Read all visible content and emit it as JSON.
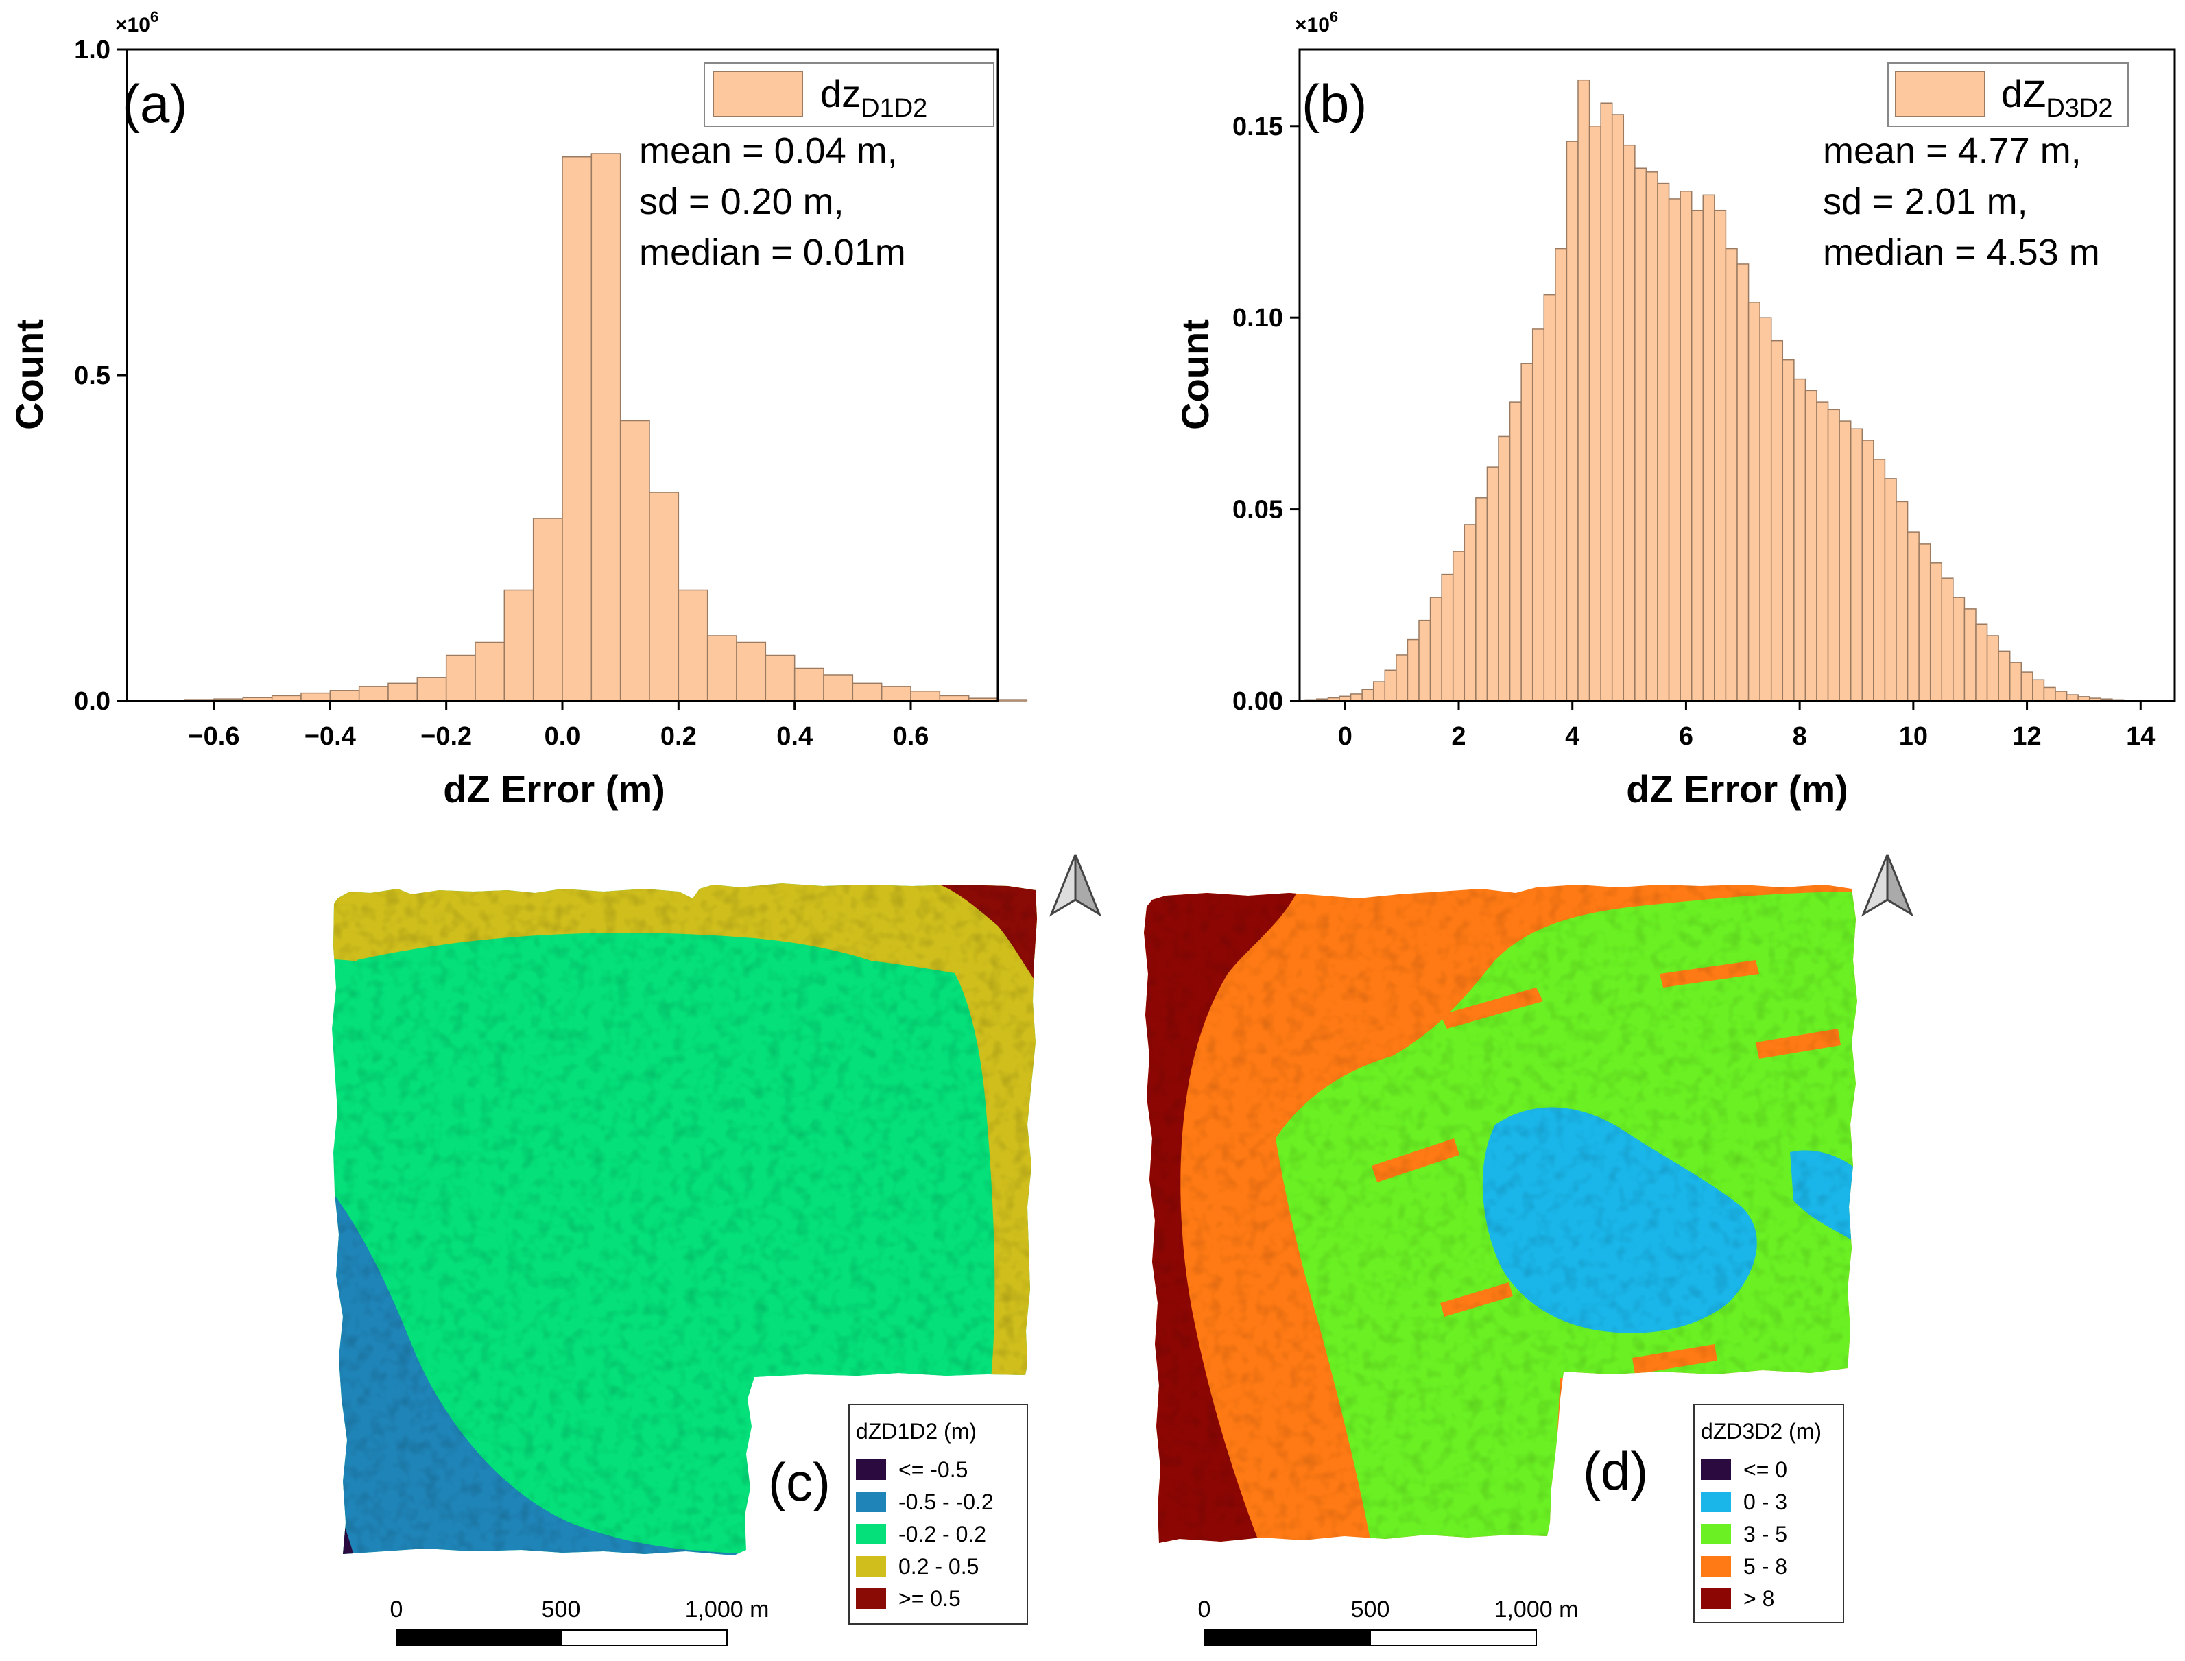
{
  "colors": {
    "bar_fill": "#FDC89E",
    "bar_stroke": "#9a7a60",
    "map_c": [
      "#2a0a3f",
      "#1f84b7",
      "#05e07a",
      "#cfbe1c",
      "#8a0a06"
    ],
    "map_d": [
      "#2a0a3f",
      "#1ab6ea",
      "#6af023",
      "#ff7a14",
      "#8c0704"
    ]
  },
  "chart_data": [
    {
      "type": "bar",
      "panel": "(a)",
      "xlabel": "dZ Error (m)",
      "ylabel": "Count",
      "multiplier_label": "×10",
      "multiplier_exp": "6",
      "xlim": [
        -0.75,
        0.75
      ],
      "ylim": [
        0,
        1.0
      ],
      "xticks": [
        "−0.6",
        "−0.4",
        "−0.2",
        "0.0",
        "0.2",
        "0.4",
        "0.6"
      ],
      "xtick_values": [
        -0.6,
        -0.4,
        -0.2,
        0.0,
        0.2,
        0.4,
        0.6
      ],
      "yticks": [
        "0.0",
        "0.5",
        "1.0"
      ],
      "ytick_values": [
        0,
        0.5,
        1.0
      ],
      "legend": {
        "label": "dz",
        "sub": "D1D2"
      },
      "stats": [
        "mean = 0.04 m,",
        "sd = 0.20 m,",
        "median = 0.01m"
      ],
      "bin_start": -0.7,
      "bin_width": 0.05,
      "values": [
        0.001,
        0.002,
        0.003,
        0.005,
        0.008,
        0.012,
        0.016,
        0.022,
        0.027,
        0.036,
        0.07,
        0.09,
        0.17,
        0.28,
        0.835,
        0.84,
        0.43,
        0.32,
        0.17,
        0.1,
        0.09,
        0.07,
        0.05,
        0.04,
        0.027,
        0.022,
        0.015,
        0.008,
        0.004,
        0.002
      ]
    },
    {
      "type": "bar",
      "panel": "(b)",
      "xlabel": "dZ Error (m)",
      "ylabel": "Count",
      "multiplier_label": "×10",
      "multiplier_exp": "6",
      "xlim": [
        -0.8,
        14.6
      ],
      "ylim": [
        0,
        0.17
      ],
      "xticks": [
        "0",
        "2",
        "4",
        "6",
        "8",
        "10",
        "12",
        "14"
      ],
      "xtick_values": [
        0,
        2,
        4,
        6,
        8,
        10,
        12,
        14
      ],
      "yticks": [
        "0.00",
        "0.05",
        "0.10",
        "0.15"
      ],
      "ytick_values": [
        0,
        0.05,
        0.1,
        0.15
      ],
      "legend": {
        "label": "dZ",
        "sub": "D3D2"
      },
      "stats": [
        "mean = 4.77 m,",
        "sd = 2.01 m,",
        "median = 4.53 m"
      ],
      "bin_start": -0.7,
      "bin_width": 0.2,
      "values": [
        0.0003,
        0.0005,
        0.0008,
        0.0012,
        0.0018,
        0.003,
        0.005,
        0.008,
        0.012,
        0.016,
        0.021,
        0.027,
        0.033,
        0.039,
        0.046,
        0.053,
        0.061,
        0.069,
        0.078,
        0.088,
        0.097,
        0.106,
        0.118,
        0.146,
        0.162,
        0.15,
        0.156,
        0.153,
        0.145,
        0.139,
        0.138,
        0.135,
        0.131,
        0.133,
        0.128,
        0.132,
        0.128,
        0.118,
        0.114,
        0.104,
        0.1,
        0.094,
        0.089,
        0.084,
        0.081,
        0.078,
        0.076,
        0.073,
        0.071,
        0.068,
        0.063,
        0.058,
        0.052,
        0.044,
        0.041,
        0.036,
        0.032,
        0.027,
        0.024,
        0.02,
        0.017,
        0.013,
        0.01,
        0.0075,
        0.0055,
        0.0035,
        0.0025,
        0.0016,
        0.0011,
        0.0007,
        0.0005,
        0.0003,
        0.0002,
        0.0001,
        0.0001
      ]
    }
  ],
  "maps": {
    "c": {
      "panel": "(c)",
      "legend_title": "dZD1D2 (m)",
      "classes": [
        "<= -0.5",
        "-0.5 - -0.2",
        "-0.2 - 0.2",
        "0.2 - 0.5",
        ">= 0.5"
      ],
      "scale_labels": [
        "0",
        "500",
        "1,000 m"
      ]
    },
    "d": {
      "panel": "(d)",
      "legend_title": "dZD3D2 (m)",
      "classes": [
        "<= 0",
        "0 - 3",
        "3 - 5",
        "5 - 8",
        "> 8"
      ],
      "scale_labels": [
        "0",
        "500",
        "1,000 m"
      ]
    }
  }
}
